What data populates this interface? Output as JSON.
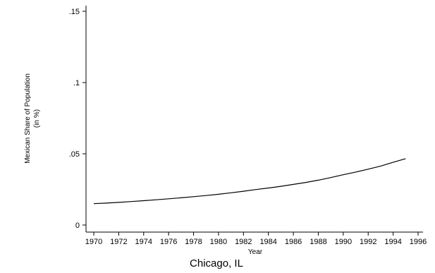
{
  "chart_data": {
    "type": "line",
    "title": "",
    "caption": "Chicago, IL",
    "xlabel": "Year",
    "ylabel_line1": "Mexican Share of Population",
    "ylabel_line2": "(in %)",
    "xlim": [
      1970,
      1996
    ],
    "ylim": [
      0,
      0.15
    ],
    "x_ticks": [
      1970,
      1972,
      1974,
      1976,
      1978,
      1980,
      1982,
      1984,
      1986,
      1988,
      1990,
      1992,
      1994,
      1996
    ],
    "x_tick_labels": [
      "1970",
      "1972",
      "1974",
      "1976",
      "1978",
      "1980",
      "1982",
      "1984",
      "1986",
      "1988",
      "1990",
      "1992",
      "1994",
      "1996"
    ],
    "y_ticks": [
      0,
      0.05,
      0.1,
      0.15
    ],
    "y_tick_labels": [
      "0",
      ".05",
      ".1",
      ".15"
    ],
    "grid": false,
    "line_color": "#000000",
    "series": [
      {
        "x": [
          1970,
          1971,
          1972,
          1973,
          1974,
          1975,
          1976,
          1977,
          1978,
          1979,
          1980,
          1981,
          1982,
          1983,
          1984,
          1985,
          1986,
          1987,
          1988,
          1989,
          1990,
          1991,
          1992,
          1993,
          1994,
          1995
        ],
        "values": [
          0.015,
          0.0154,
          0.0159,
          0.0165,
          0.0171,
          0.0177,
          0.0184,
          0.0191,
          0.0199,
          0.0207,
          0.0216,
          0.0226,
          0.0237,
          0.0249,
          0.026,
          0.0272,
          0.0285,
          0.0299,
          0.0315,
          0.0333,
          0.0353,
          0.0372,
          0.0392,
          0.0414,
          0.044,
          0.0466
        ]
      }
    ]
  }
}
